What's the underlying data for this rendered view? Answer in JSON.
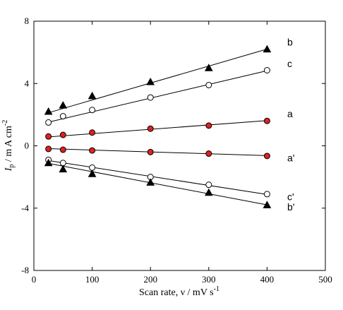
{
  "chart_data": {
    "type": "scatter",
    "xlabel": "Scan rate, ν / mV s",
    "xlabel_sup": "-1",
    "ylabel_main": "I",
    "ylabel_sub": "p",
    "ylabel_rest": " / m A cm",
    "ylabel_sup": "-2",
    "xlim": [
      0,
      500
    ],
    "ylim": [
      -8,
      8
    ],
    "xticks": [
      0,
      100,
      200,
      300,
      400,
      500
    ],
    "yticks": [
      -8,
      -4,
      0,
      4,
      8
    ],
    "grid": false,
    "x": [
      25,
      50,
      100,
      200,
      300,
      400
    ],
    "series": [
      {
        "name": "b",
        "marker": "triangle",
        "fill": "#000000",
        "values": [
          2.2,
          2.6,
          3.2,
          4.1,
          5.0,
          6.2
        ],
        "fit": [
          1.85,
          0.0109
        ]
      },
      {
        "name": "c",
        "marker": "circle",
        "fill": "#ffffff",
        "values": [
          1.5,
          1.9,
          2.3,
          3.1,
          3.9,
          4.85
        ],
        "fit": [
          1.3,
          0.0088
        ]
      },
      {
        "name": "a",
        "marker": "circle",
        "fill": "#e02020",
        "values": [
          0.6,
          0.7,
          0.85,
          1.1,
          1.3,
          1.6
        ],
        "fit": [
          0.5,
          0.0028
        ]
      },
      {
        "name": "a'",
        "marker": "circle",
        "fill": "#e02020",
        "values": [
          -0.2,
          -0.25,
          -0.3,
          -0.4,
          -0.5,
          -0.65
        ],
        "fit": [
          -0.15,
          -0.0012
        ]
      },
      {
        "name": "c'",
        "marker": "circle",
        "fill": "#ffffff",
        "values": [
          -0.9,
          -1.1,
          -1.4,
          -2.0,
          -2.5,
          -3.1
        ],
        "fit": [
          -0.8,
          -0.0058
        ]
      },
      {
        "name": "b'",
        "marker": "triangle",
        "fill": "#000000",
        "values": [
          -1.1,
          -1.5,
          -1.8,
          -2.35,
          -3.0,
          -3.8
        ],
        "fit": [
          -0.95,
          -0.0071
        ]
      }
    ]
  }
}
